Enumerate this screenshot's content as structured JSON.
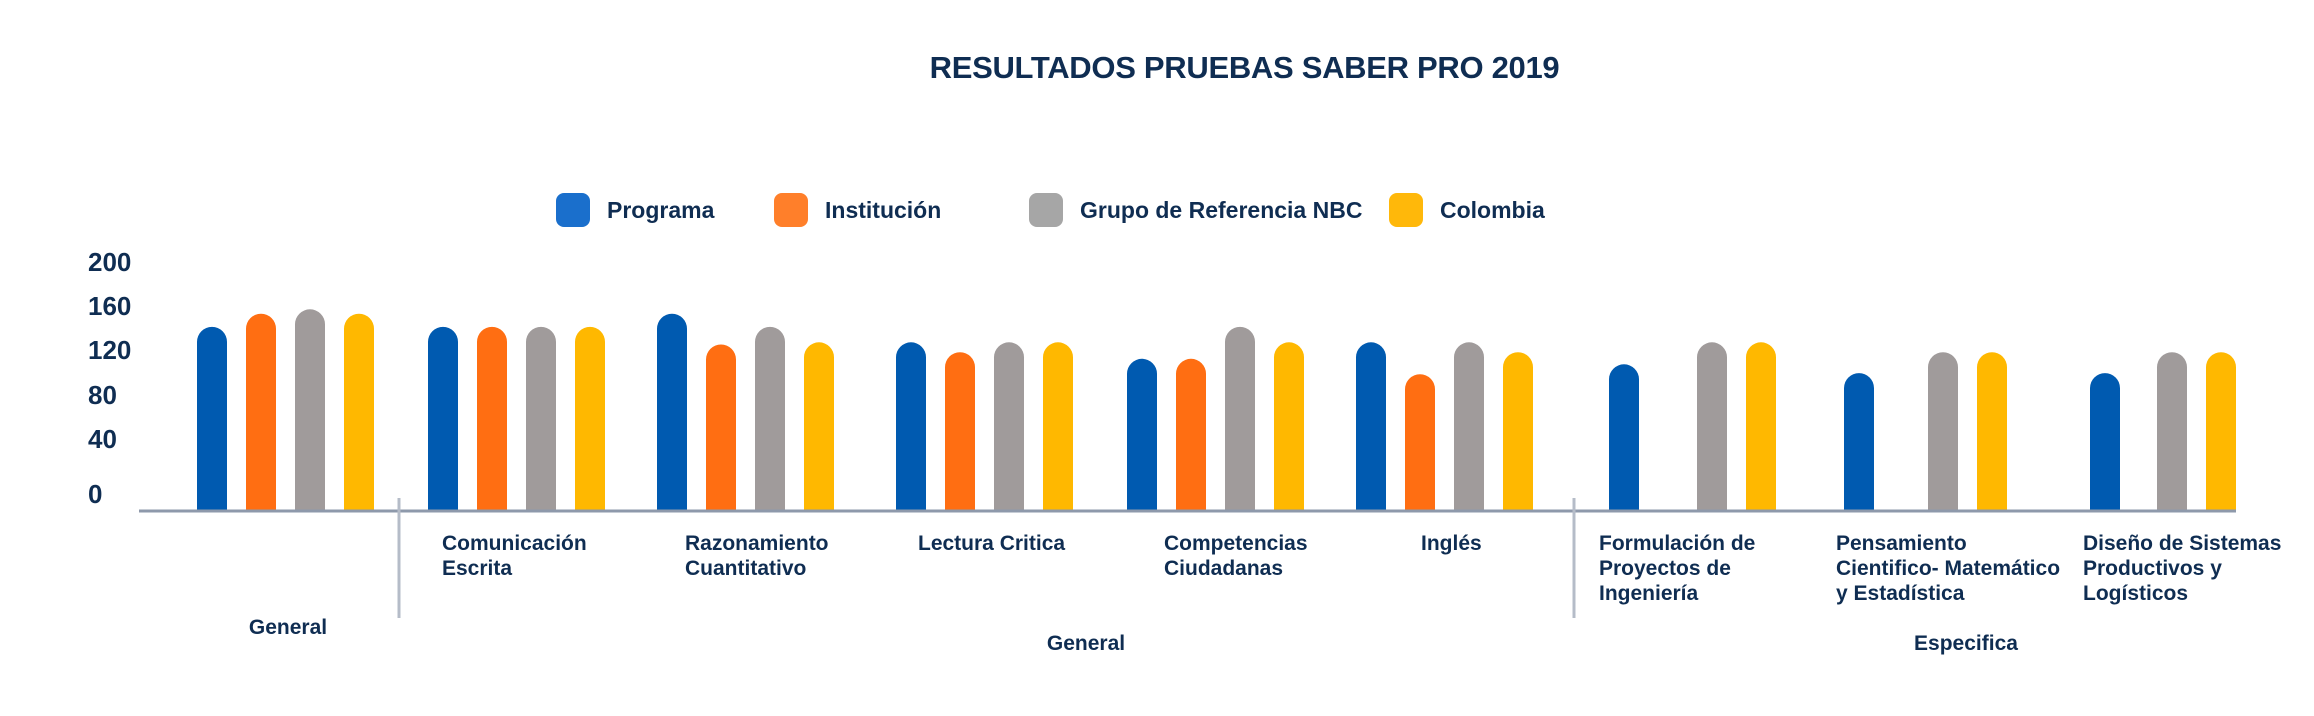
{
  "chart_data": {
    "type": "bar",
    "title": "RESULTADOS PRUEBAS SABER PRO 2019",
    "xlabel": "",
    "ylabel": "",
    "ylim": [
      0,
      200
    ],
    "yticks": [
      "200",
      "160",
      "120",
      "80",
      "40",
      "0"
    ],
    "grid": false,
    "legend_position": "top-center",
    "categories": [
      "",
      "Comunicación\nEscrita",
      "Razonamiento\nCuantitativo",
      "Lectura Critica",
      "Competencias\nCiudadanas",
      "Inglés",
      "Formulación de\nProyectos de\nIngeniería",
      "Pensamiento\nCientifico- Matemático\ny Estadística",
      "Diseño de Sistemas\nProductivos y\nLogísticos"
    ],
    "groups": [
      {
        "label": "General",
        "categories": [
          0
        ]
      },
      {
        "label": "General",
        "categories": [
          1,
          2,
          3,
          4,
          5
        ]
      },
      {
        "label": "Especifica",
        "categories": [
          6,
          7,
          8
        ]
      }
    ],
    "series": [
      {
        "name": "Programa",
        "color": "#005ab0",
        "values": [
          141,
          141,
          153,
          127,
          112,
          127,
          107,
          99,
          99
        ]
      },
      {
        "name": "Institución",
        "color": "#ff6e12",
        "values": [
          153,
          141,
          125,
          118,
          112,
          98,
          null,
          null,
          null
        ]
      },
      {
        "name": "Grupo de Referencia NBC",
        "color": "#a09b9b",
        "values": [
          157,
          141,
          141,
          127,
          141,
          127,
          127,
          118,
          118
        ]
      },
      {
        "name": "Colombia",
        "color": "#ffb800",
        "values": [
          153,
          141,
          127,
          127,
          127,
          118,
          127,
          118,
          118
        ]
      }
    ]
  },
  "legend_colors": {
    "Programa": "#1a6fcc",
    "Institución": "#ff7f2a",
    "Grupo de Referencia NBC": "#a6a6a6",
    "Colombia": "#ffb80a"
  },
  "colors": {
    "text": "#0f2d52",
    "axis": "#8e99ab",
    "divider": "#b5bcc8"
  }
}
